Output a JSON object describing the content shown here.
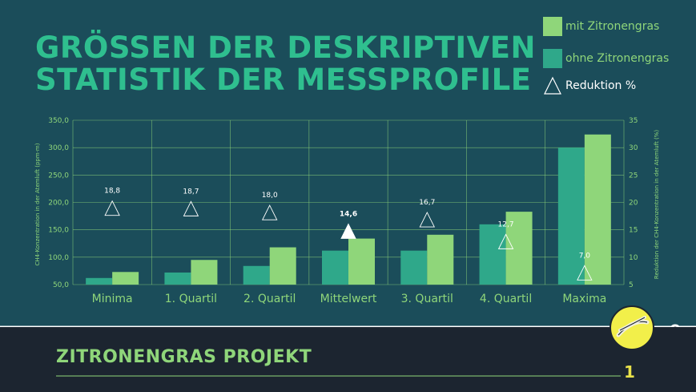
{
  "slide": {
    "title_line1": "GRÖSSEN DER DESKRIPTIVEN",
    "title_line2": "STATISTIK DER MESSPROFILE",
    "footer_title": "ZITRONENGRAS PROJEKT",
    "page_number": "1"
  },
  "colors": {
    "background": "#1b4d5a",
    "footer_background": "#1c2530",
    "title": "#2fbf8f",
    "series_mit": "#8fd67a",
    "series_ohne": "#2fa88a",
    "axis_text": "#8fd67a",
    "grid": "#8fd67a",
    "logo_circle": "#f2ef4a"
  },
  "legend": {
    "position": "top-right",
    "items": [
      {
        "label": "mit Zitronengras",
        "color": "#8fd67a",
        "marker": "square"
      },
      {
        "label": "ohne Zitronengras",
        "color": "#2fa88a",
        "marker": "square"
      },
      {
        "label": "Reduktion %",
        "color": "#ffffff",
        "marker": "triangle-outline"
      }
    ]
  },
  "chart_data": {
    "type": "bar",
    "categories": [
      "Minima",
      "1. Quartil",
      "2. Quartil",
      "Mittelwert",
      "3. Quartil",
      "4. Quartil",
      "Maxima"
    ],
    "series": [
      {
        "name": "ohne Zitronengras",
        "values": [
          62,
          72,
          84,
          112,
          112,
          160,
          300
        ],
        "axis": "left"
      },
      {
        "name": "mit Zitronengras",
        "values": [
          73,
          95,
          118,
          134,
          141,
          183,
          324
        ],
        "axis": "left"
      },
      {
        "name": "Reduktion %",
        "type": "scatter",
        "marker": "triangle",
        "axis": "right",
        "values": [
          18.8,
          18.7,
          18.0,
          14.6,
          16.7,
          12.7,
          7.0
        ],
        "labels": [
          "18,8",
          "18,7",
          "18,0",
          "14,6",
          "16,7",
          "12,7",
          "7,0"
        ],
        "highlight_index": 3
      }
    ],
    "ylabel": "CH4-Konzentration in der Atemluft (ppm·m)",
    "y2label": "Reduktion der CH4-Konzentration in der Atemluft (%)",
    "ylim": [
      50,
      350
    ],
    "yticks": [
      50,
      100,
      150,
      200,
      250,
      300,
      350
    ],
    "ytick_labels": [
      "50,0",
      "100,0",
      "150,0",
      "200,0",
      "250,0",
      "300,0",
      "350,0"
    ],
    "y2lim": [
      5,
      35
    ],
    "y2ticks": [
      5,
      10,
      15,
      20,
      25,
      30,
      35
    ],
    "y2tick_labels": [
      "5",
      "10",
      "15",
      "20",
      "25",
      "30",
      "35"
    ],
    "grid": true
  }
}
